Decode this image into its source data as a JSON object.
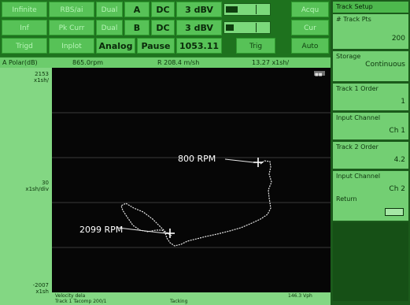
{
  "toolbar": {
    "row1": {
      "b1": "Infinite",
      "b2": "RBS/ai",
      "b3": "Dual",
      "trace": "A",
      "coupling": "DC",
      "range": "3 dBV",
      "b4": "Acqu",
      "meter_level": 0.28
    },
    "row2": {
      "b1": "Inf",
      "b2": "Pk Curr",
      "b3": "Dual",
      "trace": "B",
      "coupling": "DC",
      "range": "3 dBV",
      "b4": "Cur",
      "meter_level": 0.18
    },
    "row3": {
      "b1": "Trigd",
      "b2": "Inplot",
      "mode": "Analog",
      "pause": "Pause",
      "counter": "1053.11",
      "b3": "Trig",
      "b4": "Auto"
    }
  },
  "status": {
    "trace": "A Polar(dB)",
    "span": "865.0rpm",
    "marker": "R 208.4 m/sh",
    "marker2": "13.27 x1sh/"
  },
  "yaxis": {
    "top": "2153",
    "top_unit": "x1sh/",
    "mid": "30",
    "mid_unit": "x1sh/div",
    "bottom": "-2007",
    "bottom_unit": "x1sh"
  },
  "plot": {
    "annotations": {
      "rpm_high": "800 RPM",
      "rpm_low": "2099 RPM"
    },
    "corner_badge": "■■"
  },
  "footer": {
    "line1_left": "Velocity dela",
    "line2_left": "Track 1 Tacomp 200/1",
    "line2_mid": "Tacking",
    "line1_right": "146.3 Vph"
  },
  "menu": {
    "title": "Track Setup",
    "items": [
      {
        "label": "# Track Pts",
        "value": "200"
      },
      {
        "label": "Storage",
        "value": "Continuous"
      },
      {
        "label": "Track 1 Order",
        "value": "1"
      },
      {
        "label": "Input Channel",
        "value": "Ch 1"
      },
      {
        "label": "Track 2 Order",
        "value": "4.2"
      },
      {
        "label": "Input Channel",
        "value": "Ch 2"
      },
      {
        "label": "Return",
        "value": ""
      }
    ]
  },
  "colors": {
    "screen_bg": "#060606",
    "trace": "#e6e6e6",
    "panel_green": "#2a7f2a"
  }
}
